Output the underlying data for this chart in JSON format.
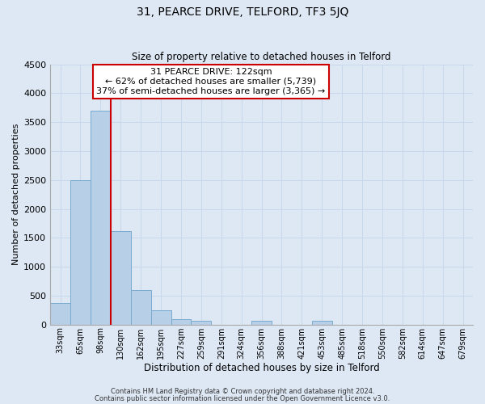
{
  "title": "31, PEARCE DRIVE, TELFORD, TF3 5JQ",
  "subtitle": "Size of property relative to detached houses in Telford",
  "xlabel": "Distribution of detached houses by size in Telford",
  "ylabel": "Number of detached properties",
  "bar_labels": [
    "33sqm",
    "65sqm",
    "98sqm",
    "130sqm",
    "162sqm",
    "195sqm",
    "227sqm",
    "259sqm",
    "291sqm",
    "324sqm",
    "356sqm",
    "388sqm",
    "421sqm",
    "453sqm",
    "485sqm",
    "518sqm",
    "550sqm",
    "582sqm",
    "614sqm",
    "647sqm",
    "679sqm"
  ],
  "bar_values": [
    375,
    2500,
    3700,
    1620,
    600,
    240,
    100,
    60,
    0,
    0,
    60,
    0,
    0,
    60,
    0,
    0,
    0,
    0,
    0,
    0,
    0
  ],
  "bar_color": "#b8cfe8",
  "bar_edgecolor": "#7aaad0",
  "bar_linewidth": 0.7,
  "vline_color": "#cc0000",
  "vline_pos": 2.5,
  "ylim": [
    0,
    4500
  ],
  "yticks": [
    0,
    500,
    1000,
    1500,
    2000,
    2500,
    3000,
    3500,
    4000,
    4500
  ],
  "annotation_title": "31 PEARCE DRIVE: 122sqm",
  "annotation_line1": "← 62% of detached houses are smaller (5,739)",
  "annotation_line2": "37% of semi-detached houses are larger (3,365) →",
  "annotation_box_facecolor": "#ffffff",
  "annotation_box_edgecolor": "#cc0000",
  "grid_color": "#c8d8ea",
  "plot_bg_color": "#dde8f4",
  "fig_bg_color": "#dde8f4",
  "footer1": "Contains HM Land Registry data © Crown copyright and database right 2024.",
  "footer2": "Contains public sector information licensed under the Open Government Licence v3.0."
}
